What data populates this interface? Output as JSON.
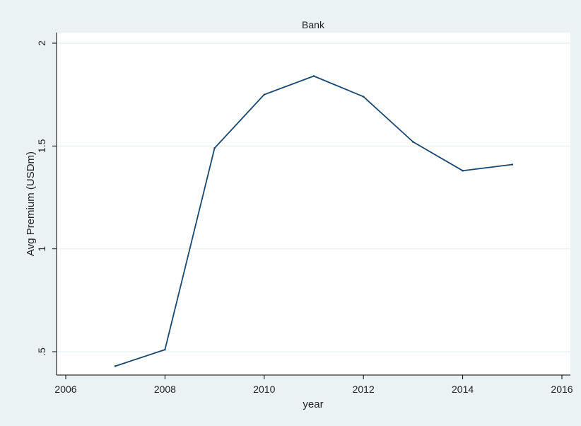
{
  "chart_data": {
    "type": "line",
    "title": "Bank",
    "xlabel": "year",
    "ylabel": "Avg Premium (USDm)",
    "xlim": [
      2006,
      2016
    ],
    "ylim": [
      0.5,
      2
    ],
    "x_ticks": [
      2006,
      2008,
      2010,
      2012,
      2014,
      2016
    ],
    "x_tick_labels": [
      "2006",
      "2008",
      "2010",
      "2012",
      "2014",
      "2016"
    ],
    "y_ticks": [
      0.5,
      1,
      1.5,
      2
    ],
    "y_tick_labels": [
      ".5",
      "1",
      "1.5",
      "2"
    ],
    "grid": true,
    "series": [
      {
        "x": [
          2007,
          2008,
          2009,
          2010,
          2011,
          2012,
          2013,
          2014,
          2015
        ],
        "values": [
          0.43,
          0.51,
          1.49,
          1.75,
          1.84,
          1.74,
          1.52,
          1.38,
          1.41
        ]
      }
    ]
  },
  "colors": {
    "outer_background": "#eaf2f3",
    "plot_background": "#ffffff",
    "grid": "#eaf2f3",
    "line": "#1a476f",
    "axis": "#000000"
  }
}
